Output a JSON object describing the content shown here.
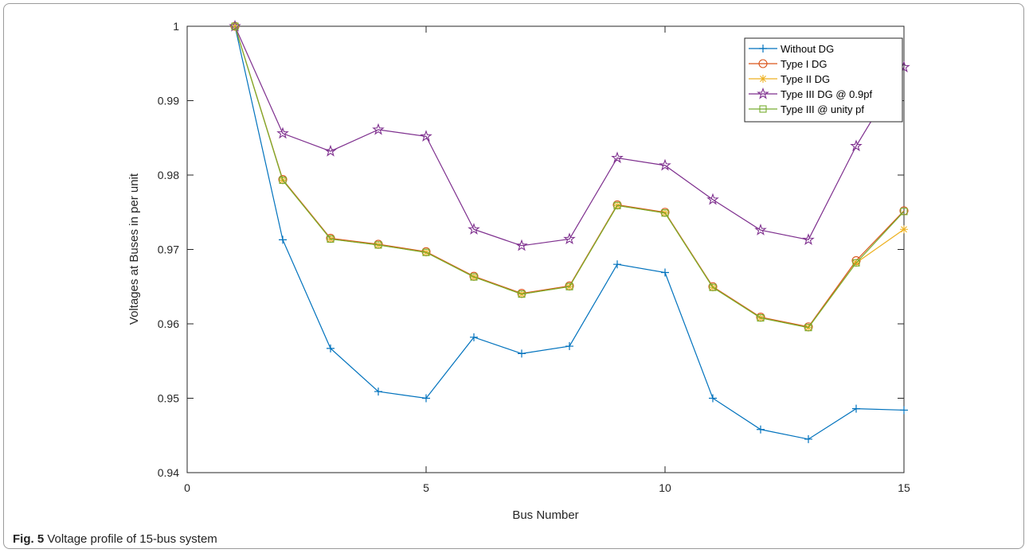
{
  "figure": {
    "caption_label": "Fig. 5",
    "caption_text": "Voltage profile of 15-bus system"
  },
  "chart_data": {
    "type": "line",
    "xlabel": "Bus Number",
    "ylabel": "Voltages at Buses in per unit",
    "xlim": [
      0,
      15
    ],
    "ylim": [
      0.94,
      1.0
    ],
    "xticks": [
      0,
      5,
      10,
      15
    ],
    "yticks": [
      0.94,
      0.95,
      0.96,
      0.97,
      0.98,
      0.99,
      1
    ],
    "ytick_labels": [
      "0.94",
      "0.95",
      "0.96",
      "0.97",
      "0.98",
      "0.99",
      "1"
    ],
    "grid": false,
    "legend_position": "top-right",
    "x": [
      1,
      2,
      3,
      4,
      5,
      6,
      7,
      8,
      9,
      10,
      11,
      12,
      13,
      14,
      15
    ],
    "series": [
      {
        "name": "Without DG",
        "color": "#0072bd",
        "marker": "plus",
        "values": [
          1.0,
          0.9713,
          0.9567,
          0.9509,
          0.95,
          0.9582,
          0.956,
          0.957,
          0.968,
          0.9669,
          0.95,
          0.9458,
          0.9445,
          0.9486,
          0.9484
        ]
      },
      {
        "name": "Type I DG",
        "color": "#d95319",
        "marker": "circle",
        "values": [
          1.0,
          0.9794,
          0.9715,
          0.9707,
          0.9697,
          0.9664,
          0.9641,
          0.9651,
          0.976,
          0.975,
          0.965,
          0.9609,
          0.9596,
          0.9685,
          0.9752
        ]
      },
      {
        "name": "Type II DG",
        "color": "#edb120",
        "marker": "asterisk",
        "values": [
          1.0,
          0.9793,
          0.9714,
          0.9706,
          0.9696,
          0.9663,
          0.964,
          0.965,
          0.9759,
          0.9749,
          0.9649,
          0.9608,
          0.9595,
          0.9682,
          0.9727
        ]
      },
      {
        "name": "Type III DG @ 0.9pf",
        "color": "#7e2f8e",
        "marker": "pentagram",
        "values": [
          1.0,
          0.9856,
          0.9832,
          0.9861,
          0.9852,
          0.9727,
          0.9705,
          0.9714,
          0.9823,
          0.9813,
          0.9767,
          0.9726,
          0.9713,
          0.9839,
          0.9945
        ]
      },
      {
        "name": "Type III @ unity pf",
        "color": "#77ac30",
        "marker": "square",
        "values": [
          1.0,
          0.9793,
          0.9714,
          0.9706,
          0.9696,
          0.9663,
          0.964,
          0.965,
          0.9759,
          0.9749,
          0.9649,
          0.9608,
          0.9595,
          0.9682,
          0.9751
        ]
      }
    ]
  }
}
